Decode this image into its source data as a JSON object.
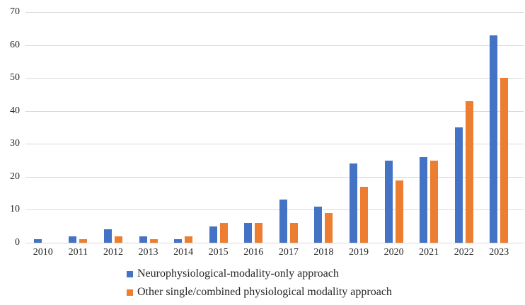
{
  "chart_data": {
    "type": "bar",
    "title": "",
    "categories": [
      "2010",
      "2011",
      "2012",
      "2013",
      "2014",
      "2015",
      "2016",
      "2017",
      "2018",
      "2019",
      "2020",
      "2021",
      "2022",
      "2023"
    ],
    "series": [
      {
        "name": "Neurophysiological-modality-only approach",
        "color": "#4472C4",
        "values": [
          1,
          2,
          4,
          2,
          1,
          5,
          6,
          13,
          11,
          24,
          25,
          26,
          35,
          63
        ]
      },
      {
        "name": "Other single/combined physiological modality approach",
        "color": "#ED7D31",
        "values": [
          0,
          1,
          2,
          1,
          2,
          6,
          6,
          6,
          9,
          17,
          19,
          25,
          43,
          50
        ]
      }
    ],
    "xlabel": "",
    "ylabel": "",
    "ylim": [
      0,
      70
    ],
    "ytick_step": 10,
    "yticks": [
      "0",
      "10",
      "20",
      "30",
      "40",
      "50",
      "60",
      "70"
    ],
    "grid": "horizontal",
    "gridline_color": "#D9D9D9",
    "axis_text_color": "#262626",
    "legend_position": "bottom-left",
    "legend": [
      "Neurophysiological-modality-only approach",
      "Other single/combined physiological modality approach"
    ]
  }
}
